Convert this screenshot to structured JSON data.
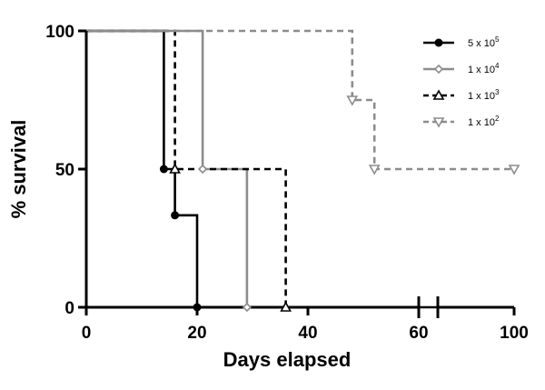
{
  "chart_data": {
    "type": "line",
    "subtype": "kaplan-meier-step",
    "title": "",
    "xlabel": "Days elapsed",
    "ylabel": "% survival",
    "xlim": [
      0,
      100
    ],
    "ylim": [
      0,
      100
    ],
    "x_axis_break": [
      60,
      64
    ],
    "x_ticks": [
      {
        "value": 0,
        "label": "0"
      },
      {
        "value": 20,
        "label": "20"
      },
      {
        "value": 40,
        "label": "40"
      },
      {
        "value": 60,
        "label": "60"
      },
      {
        "value": 100,
        "label": "100"
      }
    ],
    "y_ticks": [
      {
        "value": 0,
        "label": "0"
      },
      {
        "value": 50,
        "label": "50"
      },
      {
        "value": 100,
        "label": "100"
      }
    ],
    "grid": false,
    "legend_position": "top-right",
    "series": [
      {
        "name": "5 x 10",
        "exponent": "5",
        "color": "#000000",
        "line": "solid",
        "marker": "circle-filled",
        "steps": [
          [
            0,
            100
          ],
          [
            14,
            100
          ],
          [
            14,
            50
          ],
          [
            16,
            50
          ],
          [
            16,
            33.3
          ],
          [
            20,
            33.3
          ],
          [
            20,
            0
          ],
          [
            100,
            0
          ]
        ],
        "markers": [
          [
            14,
            50
          ],
          [
            16,
            33.3
          ],
          [
            20,
            0
          ]
        ]
      },
      {
        "name": "1 x 10",
        "exponent": "4",
        "color": "#8c8c8c",
        "line": "solid",
        "marker": "diamond-open",
        "steps": [
          [
            0,
            100
          ],
          [
            21,
            100
          ],
          [
            21,
            50
          ],
          [
            29,
            50
          ],
          [
            29,
            0
          ]
        ],
        "markers": [
          [
            21,
            50
          ],
          [
            29,
            0
          ]
        ]
      },
      {
        "name": "1 x 10",
        "exponent": "3",
        "color": "#000000",
        "line": "dashed",
        "marker": "triangle-up-open",
        "steps": [
          [
            0,
            100
          ],
          [
            16,
            100
          ],
          [
            16,
            50
          ],
          [
            36,
            50
          ],
          [
            36,
            0
          ]
        ],
        "markers": [
          [
            16,
            50
          ],
          [
            36,
            0
          ]
        ]
      },
      {
        "name": "1 x 10",
        "exponent": "2",
        "color": "#8c8c8c",
        "line": "dashed",
        "marker": "triangle-down-open",
        "steps": [
          [
            0,
            100
          ],
          [
            48,
            100
          ],
          [
            48,
            75
          ],
          [
            52,
            75
          ],
          [
            52,
            50
          ],
          [
            100,
            50
          ]
        ],
        "markers": [
          [
            48,
            75
          ],
          [
            52,
            50
          ],
          [
            100,
            50
          ]
        ]
      }
    ]
  }
}
